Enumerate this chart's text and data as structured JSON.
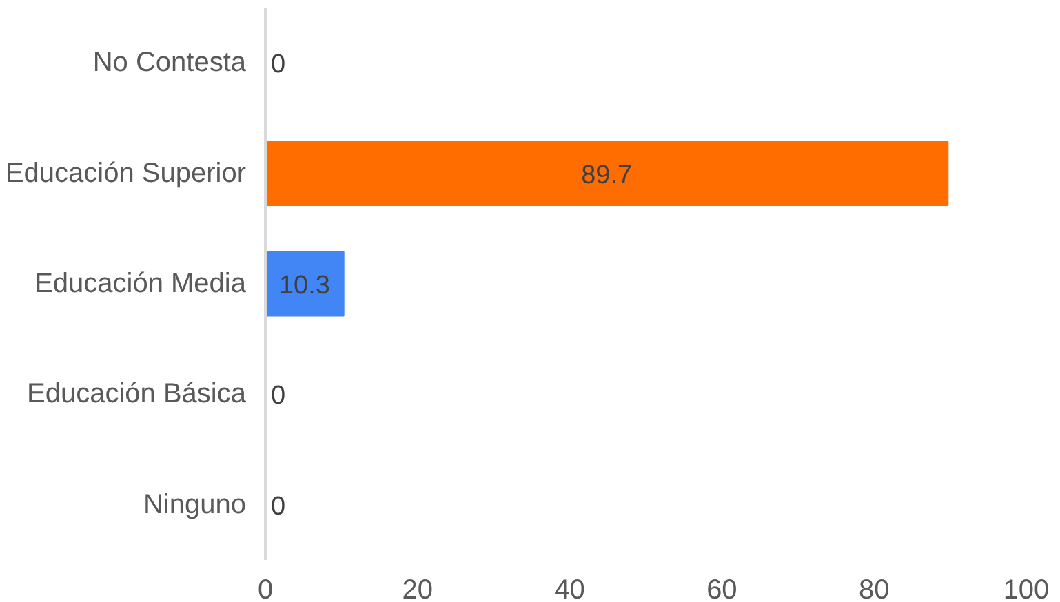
{
  "chart_data": {
    "type": "bar",
    "orientation": "horizontal",
    "categories": [
      "No Contesta",
      "Educación Superior",
      "Educación Media",
      "Educación Básica",
      "Ninguno"
    ],
    "values": [
      0,
      89.7,
      10.3,
      0,
      0
    ],
    "colors": [
      "#ff6d00",
      "#ff6d00",
      "#4285f4",
      "#4285f4",
      "#4285f4"
    ],
    "xlim": [
      0,
      100
    ],
    "xticks": [
      0,
      20,
      40,
      60,
      80,
      100
    ],
    "data_labels": true,
    "grid": false
  }
}
